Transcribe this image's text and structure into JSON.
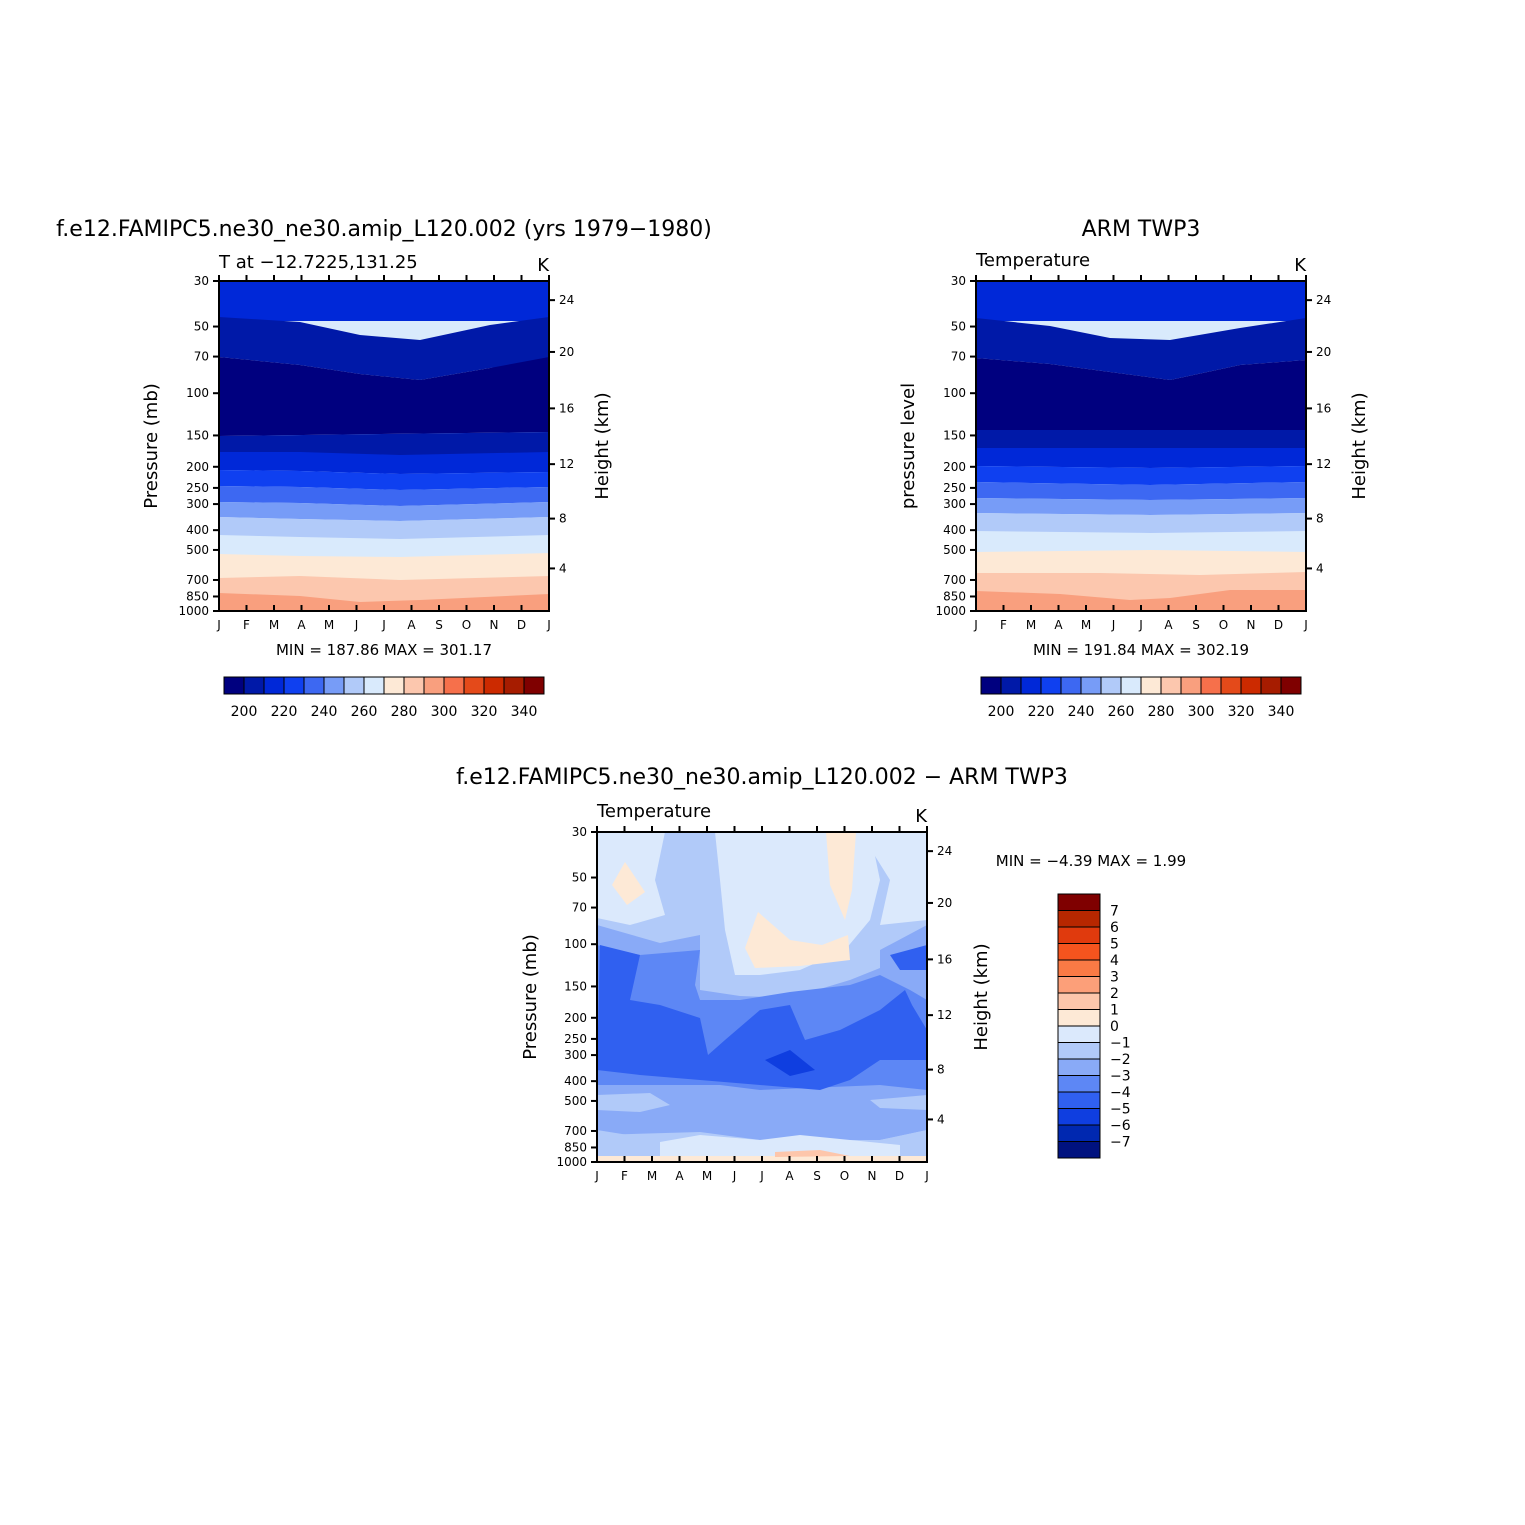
{
  "chart_data": [
    {
      "type": "heatmap",
      "title": "f.e12.FAMIPC5.ne30_ne30.amip_L120.002 (yrs 1979−1980)",
      "subtitle": "T at −12.7225,131.25",
      "units": "K",
      "ylabel": "Pressure (mb)",
      "ylabel_right": "Height (km)",
      "stats": "MIN = 187.86 MAX = 301.17",
      "x": [
        "J",
        "F",
        "M",
        "A",
        "M",
        "J",
        "J",
        "A",
        "S",
        "O",
        "N",
        "D",
        "J"
      ],
      "pressure_ticks": [
        "30",
        "50",
        "70",
        "100",
        "150",
        "200",
        "250",
        "300",
        "400",
        "500",
        "700",
        "850",
        "1000"
      ],
      "height_ticks": [
        "24",
        "20",
        "16",
        "12",
        "8",
        "4"
      ],
      "colorbar_labels": [
        "200",
        "220",
        "240",
        "260",
        "280",
        "300",
        "320",
        "340"
      ],
      "colorbar_colors": [
        "#00007f",
        "#0019a8",
        "#0028d8",
        "#0f40f0",
        "#3d68f2",
        "#779cf7",
        "#b1caf9",
        "#d9eafc",
        "#fde9d6",
        "#fcc7ae",
        "#f99f7e",
        "#f6704b",
        "#e44a1a",
        "#cc2a00",
        "#a61c00",
        "#7f0000"
      ]
    },
    {
      "type": "heatmap",
      "title": "ARM TWP3",
      "subtitle": "Temperature",
      "units": "K",
      "ylabel": "pressure level",
      "ylabel_right": "Height (km)",
      "stats": "MIN = 191.84 MAX = 302.19",
      "x": [
        "J",
        "F",
        "M",
        "A",
        "M",
        "J",
        "J",
        "A",
        "S",
        "O",
        "N",
        "D",
        "J"
      ],
      "pressure_ticks": [
        "30",
        "50",
        "70",
        "100",
        "150",
        "200",
        "250",
        "300",
        "400",
        "500",
        "700",
        "850",
        "1000"
      ],
      "height_ticks": [
        "24",
        "20",
        "16",
        "12",
        "8",
        "4"
      ],
      "colorbar_labels": [
        "200",
        "220",
        "240",
        "260",
        "280",
        "300",
        "320",
        "340"
      ],
      "colorbar_colors": [
        "#00007f",
        "#0019a8",
        "#0028d8",
        "#0f40f0",
        "#3d68f2",
        "#779cf7",
        "#b1caf9",
        "#d9eafc",
        "#fde9d6",
        "#fcc7ae",
        "#f99f7e",
        "#f6704b",
        "#e44a1a",
        "#cc2a00",
        "#a61c00",
        "#7f0000"
      ]
    },
    {
      "type": "heatmap",
      "title": "f.e12.FAMIPC5.ne30_ne30.amip_L120.002 − ARM TWP3",
      "subtitle": "Temperature",
      "units": "K",
      "ylabel": "Pressure (mb)",
      "ylabel_right": "Height (km)",
      "stats": "MIN =   −4.39 MAX =    1.99",
      "x": [
        "J",
        "F",
        "M",
        "A",
        "M",
        "J",
        "J",
        "A",
        "S",
        "O",
        "N",
        "D",
        "J"
      ],
      "pressure_ticks": [
        "30",
        "50",
        "70",
        "100",
        "150",
        "200",
        "250",
        "300",
        "400",
        "500",
        "700",
        "850",
        "1000"
      ],
      "height_ticks": [
        "24",
        "20",
        "16",
        "12",
        "8",
        "4"
      ],
      "colorbar_labels": [
        "7",
        "6",
        "5",
        "4",
        "3",
        "2",
        "1",
        "0",
        "−1",
        "−2",
        "−3",
        "−4",
        "−5",
        "−6",
        "−7"
      ],
      "colorbar_colors": [
        "#7f0000",
        "#b72700",
        "#e03a0d",
        "#f5541e",
        "#fa7a45",
        "#fc9f79",
        "#fdc6ab",
        "#fde9d6",
        "#dbe9fc",
        "#b1caf9",
        "#89aaf7",
        "#5d87f5",
        "#3060f0",
        "#0f3ee0",
        "#0028b0",
        "#00127f"
      ]
    }
  ]
}
